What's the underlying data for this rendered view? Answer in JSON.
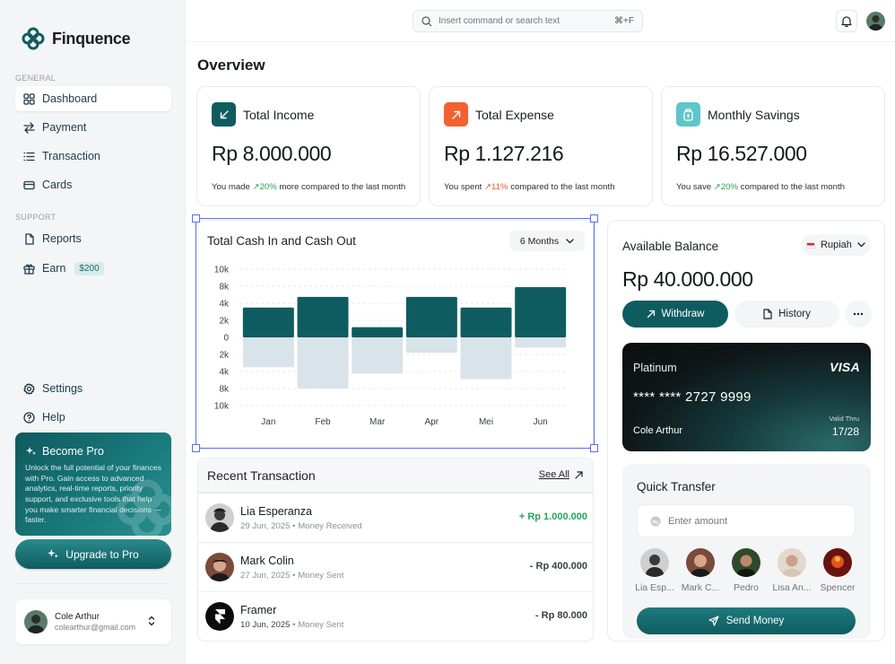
{
  "app": {
    "name": "Finquence"
  },
  "sidebar": {
    "general_label": "GENERAL",
    "support_label": "SUPPORT",
    "items": [
      {
        "label": "Dashboard",
        "icon": "grid-icon",
        "active": true
      },
      {
        "label": "Payment",
        "icon": "arrows-swap-icon"
      },
      {
        "label": "Transaction",
        "icon": "list-icon"
      },
      {
        "label": "Cards",
        "icon": "card-icon"
      }
    ],
    "support_items": [
      {
        "label": "Reports",
        "icon": "file-icon"
      },
      {
        "label": "Earn",
        "icon": "gift-icon",
        "badge": "$200"
      }
    ],
    "bottom_items": [
      {
        "label": "Settings",
        "icon": "gear-icon"
      },
      {
        "label": "Help",
        "icon": "help-icon"
      }
    ],
    "promo": {
      "title": "Become Pro",
      "description": "Unlock the full potential of your finances with Pro. Gain access to advanced analytics, real-time reports, priority support, and exclusive tools that help you make smarter financial decisions — faster."
    },
    "upgrade_label": "Upgrade to Pro",
    "user": {
      "name": "Cole Arthur",
      "email": "colearthur@gmail.com"
    }
  },
  "topbar": {
    "search_placeholder": "Insert command or search text",
    "shortcut": "⌘+F"
  },
  "overview": {
    "title": "Overview",
    "stats": [
      {
        "title": "Total Income",
        "value": "Rp 8.000.000",
        "note_pre": "You made",
        "change": "20%",
        "trend": "up",
        "note_post": "more compared to the last month",
        "color": "#0f5c60",
        "icon": "arrow-down-left-icon"
      },
      {
        "title": "Total Expense",
        "value": "Rp 1.127.216",
        "note_pre": "You spent",
        "change": "11%",
        "trend": "up-red",
        "note_post": "compared to the last month",
        "color": "#f2622e",
        "icon": "arrow-up-right-icon"
      },
      {
        "title": "Monthly Savings",
        "value": "Rp 16.527.000",
        "note_pre": "You save",
        "change": "20%",
        "trend": "up",
        "note_post": "compared to the last month",
        "color": "#5ec6c9",
        "icon": "savings-jar-icon"
      }
    ]
  },
  "cashflow": {
    "title": "Total Cash In and Cash Out",
    "period": "6 Months"
  },
  "chart_data": {
    "type": "bar",
    "categories": [
      "Jan",
      "Feb",
      "Mar",
      "Apr",
      "Mei",
      "Jun"
    ],
    "series": [
      {
        "values": [
          3500,
          5500,
          1200,
          5500,
          3500,
          7800
        ],
        "color": "#0f5c60"
      },
      {
        "values": [
          -3500,
          -8000,
          -4500,
          -1800,
          -5800,
          -1200
        ],
        "color": "#d8e3ea"
      }
    ],
    "ytick_labels": [
      "10k",
      "8k",
      "4k",
      "2k",
      "0",
      "2k",
      "4k",
      "8k",
      "10k"
    ],
    "ylim": [
      -10000,
      10000
    ],
    "stacked": true,
    "grid": true
  },
  "transactions": {
    "title": "Recent Transaction",
    "see_all": "See All",
    "rows": [
      {
        "name": "Lia Esperanza",
        "date": "29 Jun, 2025",
        "type": "Money Received",
        "amount": "+ Rp 1.000.000",
        "positive": true
      },
      {
        "name": "Mark Colin",
        "date": "27 Jun, 2025",
        "type": "Money Sent",
        "amount": "- Rp 400.000",
        "positive": false
      },
      {
        "name": "Framer",
        "date": "10 Jun, 2025",
        "type": "Money Sent",
        "amount": "- Rp 80.000",
        "positive": false
      }
    ]
  },
  "balance": {
    "label": "Available Balance",
    "currency": "Rupiah",
    "value": "Rp 40.000.000",
    "withdraw": "Withdraw",
    "history": "History"
  },
  "card": {
    "tier": "Platinum",
    "network": "VISA",
    "number": "**** **** 2727 9999",
    "holder": "Cole Arthur",
    "valid_label": "Valid Thru",
    "valid": "17/28"
  },
  "quick_transfer": {
    "title": "Quick Transfer",
    "placeholder": "Enter amount",
    "contacts": [
      "Lia Esp...",
      "Mark C...",
      "Pedro",
      "Lisa An...",
      "Spencer"
    ],
    "send": "Send Money"
  }
}
